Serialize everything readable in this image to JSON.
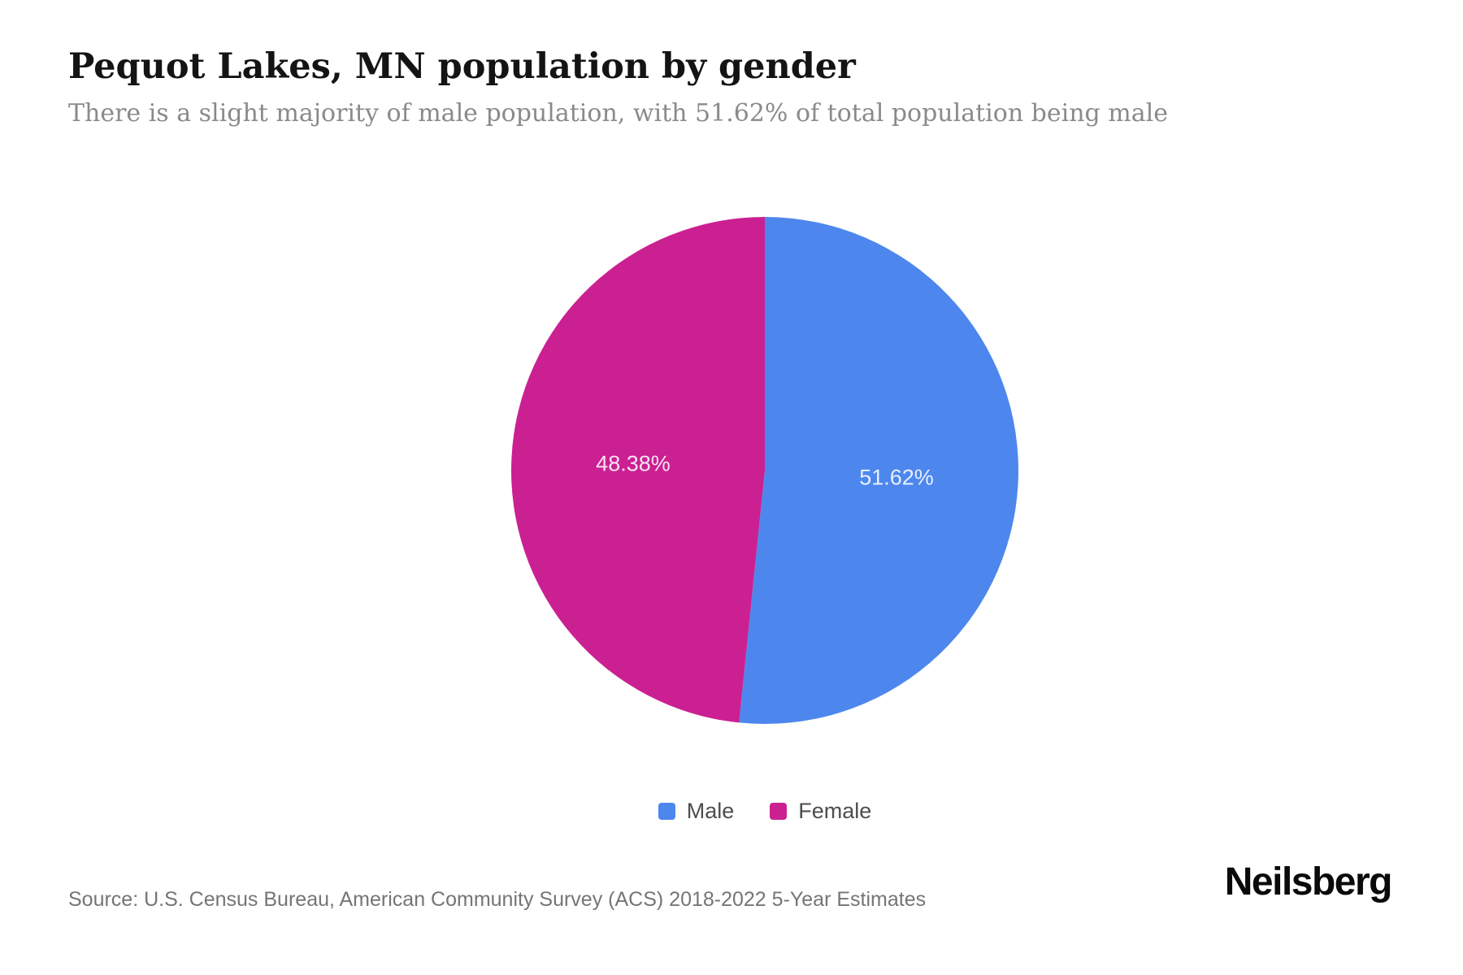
{
  "page": {
    "title": "Pequot Lakes, MN population by gender",
    "subtitle": "There is a slight majority of male population, with 51.62% of total population being male",
    "source": "Source: U.S. Census Bureau, American Community Survey (ACS) 2018-2022 5-Year Estimates",
    "brand": "Neilsberg"
  },
  "chart_data": {
    "type": "pie",
    "title": "Pequot Lakes, MN population by gender",
    "categories": [
      "Male",
      "Female"
    ],
    "values": [
      51.62,
      48.38
    ],
    "labels": [
      "51.62%",
      "48.38%"
    ],
    "colors": [
      "#4D87EE",
      "#CB2092"
    ],
    "start_angle": "top",
    "direction": "clockwise",
    "label_position": "inside",
    "legend_position": "bottom"
  },
  "legend": {
    "items": [
      {
        "label": "Male",
        "color": "#4D87EE"
      },
      {
        "label": "Female",
        "color": "#CB2092"
      }
    ]
  }
}
